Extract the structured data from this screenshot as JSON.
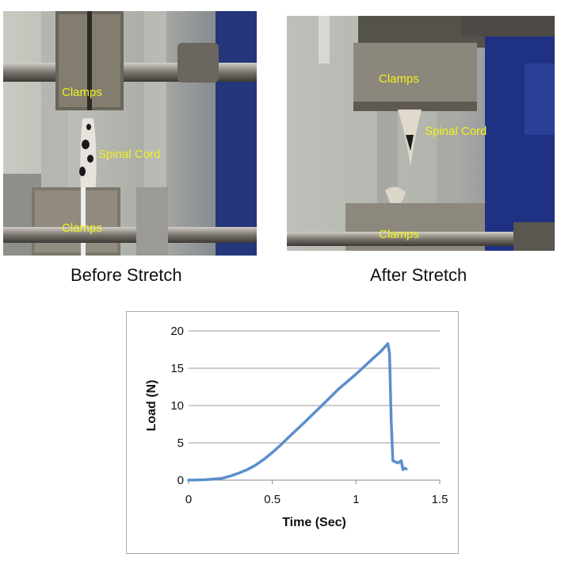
{
  "photos": {
    "before": {
      "caption": "Before Stretch",
      "label_clamps_top": "Clamps",
      "label_spinal_cord": "Spinal Cord",
      "label_clamps_bottom": "Clamps"
    },
    "after": {
      "caption": "After Stretch",
      "label_clamps_top": "Clamps",
      "label_spinal_cord": "Spinal Cord",
      "label_clamps_bottom": "Clamps"
    }
  },
  "colors": {
    "line": "#5b8fcc",
    "label": "#f2f21a",
    "grid": "#9a9a9a"
  },
  "chart_data": {
    "type": "line",
    "title": "",
    "xlabel": "Time (Sec)",
    "ylabel": "Load (N)",
    "xlim": [
      0,
      1.5
    ],
    "ylim": [
      0,
      20
    ],
    "xticks": [
      "0",
      "0.5",
      "1",
      "1.5"
    ],
    "yticks": [
      "0",
      "5",
      "10",
      "15",
      "20"
    ],
    "grid": "horizontal",
    "series": [
      {
        "x": [
          0,
          0.1,
          0.2,
          0.25,
          0.3,
          0.35,
          0.4,
          0.45,
          0.5,
          0.55,
          0.6,
          0.7,
          0.8,
          0.9,
          1.0,
          1.1,
          1.15,
          1.19,
          1.2,
          1.21,
          1.22,
          1.25,
          1.27,
          1.28,
          1.29,
          1.3
        ],
        "y": [
          0,
          0.05,
          0.25,
          0.55,
          0.95,
          1.4,
          2.0,
          2.8,
          3.7,
          4.7,
          5.8,
          7.9,
          10.1,
          12.3,
          14.2,
          16.3,
          17.3,
          18.3,
          17.0,
          8.0,
          2.6,
          2.3,
          2.6,
          1.4,
          1.6,
          1.5
        ]
      }
    ]
  }
}
